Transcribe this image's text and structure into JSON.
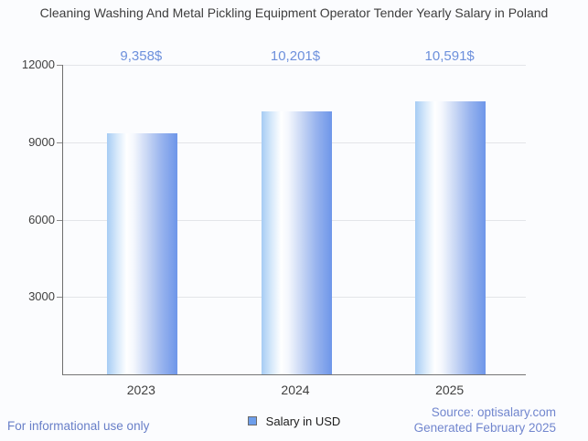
{
  "title": "Cleaning Washing And Metal Pickling Equipment Operator Tender Yearly Salary in Poland",
  "chart_data": {
    "type": "bar",
    "categories": [
      "2023",
      "2024",
      "2025"
    ],
    "values": [
      9358,
      10201,
      10591
    ],
    "value_labels": [
      "9,358$",
      "10,201$",
      "10,591$"
    ],
    "series_name": "Salary in USD",
    "ylim": [
      0,
      12000
    ],
    "yticks": [
      12000,
      9000,
      6000,
      3000
    ],
    "ytick_labels": [
      "12000",
      "9000",
      "6000",
      "3000"
    ],
    "grid": true,
    "legend_position": "bottom",
    "title_text": "Cleaning Washing And Metal Pickling Equipment Operator Tender Yearly Salary in Poland"
  },
  "colors": {
    "value_label": "#6d90dc",
    "bar_left": "#a6ccf4",
    "bar_mid": "#ffffff",
    "bar_right": "#6e96e9",
    "legend_marker": "#6d9eeb",
    "footer_blue": "#687fc8",
    "source_blue": "#7186ce"
  },
  "legend": {
    "label": "Salary in USD"
  },
  "footer": {
    "disclaimer": "For informational use only",
    "source": "Source: optisalary.com",
    "generated": "Generated February 2025"
  }
}
